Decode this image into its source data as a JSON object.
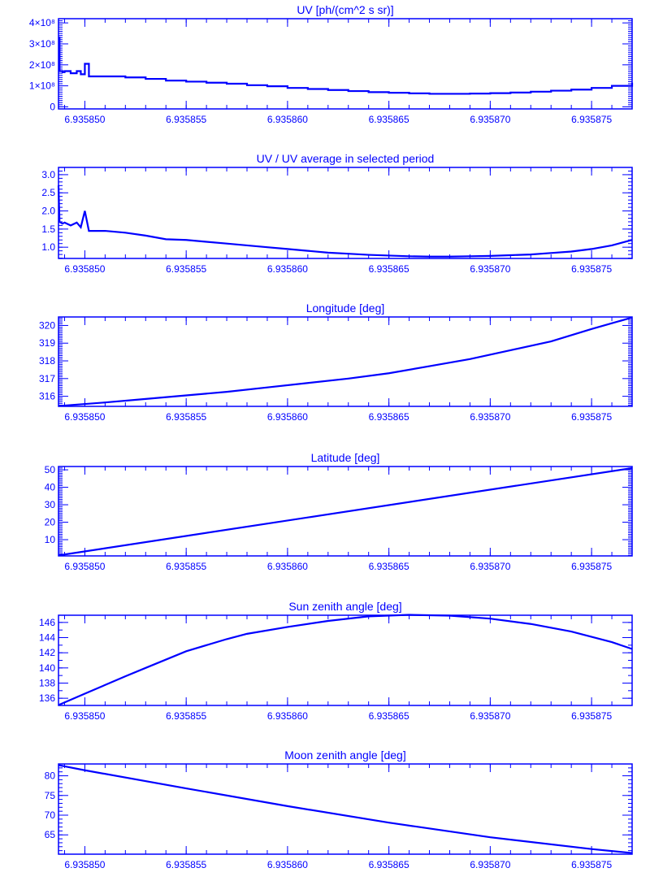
{
  "colors": {
    "line": "#0000ff",
    "axes": "#0000ff",
    "background": "#ffffff"
  },
  "chart_data": [
    {
      "type": "line",
      "step": true,
      "title": "UV [ph/(cm^2 s sr)]",
      "xlim": [
        6.9358487,
        6.935877
      ],
      "ylim": [
        -10000000,
        420000000
      ],
      "xticks": [
        6.93585,
        6.935855,
        6.93586,
        6.935865,
        6.93587,
        6.935875
      ],
      "xtick_labels": [
        "6.935850",
        "6.935855",
        "6.935860",
        "6.935865",
        "6.935870",
        "6.935875"
      ],
      "x_minor_step": 1e-06,
      "yticks": [
        0,
        100000000,
        200000000,
        300000000,
        400000000
      ],
      "ytick_labels": [
        "0",
        "1×10⁸",
        "2×10⁸",
        "3×10⁸",
        "4×10⁸"
      ],
      "y_minor_step": 10000000,
      "x": [
        6.9358487,
        6.93584875,
        6.9358489,
        6.935849,
        6.9358493,
        6.9358496,
        6.9358498,
        6.93585,
        6.9358502,
        6.935851,
        6.935852,
        6.935853,
        6.935854,
        6.935855,
        6.935856,
        6.935857,
        6.935858,
        6.935859,
        6.93586,
        6.935861,
        6.935862,
        6.935863,
        6.935864,
        6.935865,
        6.935866,
        6.935867,
        6.935868,
        6.935869,
        6.93587,
        6.935871,
        6.935872,
        6.935873,
        6.935874,
        6.935875,
        6.935876,
        6.935877
      ],
      "y": [
        330000000,
        170000000,
        165000000,
        170000000,
        160000000,
        170000000,
        155000000,
        205000000,
        145000000,
        145000000,
        140000000,
        133000000,
        125000000,
        120000000,
        115000000,
        110000000,
        103000000,
        98000000,
        90000000,
        85000000,
        80000000,
        75000000,
        70000000,
        67000000,
        64000000,
        62000000,
        62000000,
        63000000,
        65000000,
        68000000,
        72000000,
        77000000,
        82000000,
        90000000,
        100000000,
        115000000
      ]
    },
    {
      "type": "line",
      "title": "UV / UV average in selected period",
      "xlim": [
        6.9358487,
        6.935877
      ],
      "ylim": [
        0.69,
        3.2
      ],
      "xticks": [
        6.93585,
        6.935855,
        6.93586,
        6.935865,
        6.93587,
        6.935875
      ],
      "xtick_labels": [
        "6.935850",
        "6.935855",
        "6.935860",
        "6.935865",
        "6.935870",
        "6.935875"
      ],
      "x_minor_step": 1e-06,
      "yticks": [
        1.0,
        1.5,
        2.0,
        2.5,
        3.0
      ],
      "ytick_labels": [
        "1.0",
        "1.5",
        "2.0",
        "2.5",
        "3.0"
      ],
      "y_minor_step": 0.1,
      "x": [
        6.9358487,
        6.93584875,
        6.9358489,
        6.935849,
        6.9358493,
        6.9358496,
        6.9358498,
        6.93585,
        6.9358502,
        6.935851,
        6.935852,
        6.935853,
        6.935854,
        6.935855,
        6.935856,
        6.935857,
        6.935858,
        6.935859,
        6.93586,
        6.935861,
        6.935862,
        6.935863,
        6.935864,
        6.935865,
        6.935866,
        6.935867,
        6.935868,
        6.935869,
        6.93587,
        6.935871,
        6.935872,
        6.935873,
        6.935874,
        6.935875,
        6.935876,
        6.935877
      ],
      "y": [
        2.7,
        1.7,
        1.65,
        1.68,
        1.6,
        1.68,
        1.55,
        2.0,
        1.45,
        1.45,
        1.4,
        1.32,
        1.22,
        1.2,
        1.15,
        1.1,
        1.05,
        1.0,
        0.95,
        0.9,
        0.85,
        0.82,
        0.79,
        0.77,
        0.75,
        0.74,
        0.74,
        0.75,
        0.76,
        0.78,
        0.8,
        0.84,
        0.88,
        0.95,
        1.05,
        1.2
      ]
    },
    {
      "type": "line",
      "title": "Longitude [deg]",
      "xlim": [
        6.9358487,
        6.935877
      ],
      "ylim": [
        315.43,
        320.48
      ],
      "xticks": [
        6.93585,
        6.935855,
        6.93586,
        6.935865,
        6.93587,
        6.935875
      ],
      "xtick_labels": [
        "6.935850",
        "6.935855",
        "6.935860",
        "6.935865",
        "6.935870",
        "6.935875"
      ],
      "x_minor_step": 1e-06,
      "yticks": [
        316,
        317,
        318,
        319,
        320
      ],
      "ytick_labels": [
        "316",
        "317",
        "318",
        "319",
        "320"
      ],
      "y_minor_step": 0.1,
      "x": [
        6.9358487,
        6.935851,
        6.935853,
        6.935855,
        6.935857,
        6.935859,
        6.935861,
        6.935863,
        6.935865,
        6.935867,
        6.935869,
        6.935871,
        6.935873,
        6.935875,
        6.935877
      ],
      "y": [
        315.45,
        315.65,
        315.85,
        316.05,
        316.25,
        316.5,
        316.75,
        317.0,
        317.3,
        317.7,
        318.1,
        318.6,
        319.1,
        319.8,
        320.45
      ]
    },
    {
      "type": "line",
      "title": "Latitude [deg]",
      "xlim": [
        6.9358487,
        6.935877
      ],
      "ylim": [
        0.7,
        51.9
      ],
      "xticks": [
        6.93585,
        6.935855,
        6.93586,
        6.935865,
        6.93587,
        6.935875
      ],
      "xtick_labels": [
        "6.935850",
        "6.935855",
        "6.935860",
        "6.935865",
        "6.935870",
        "6.935875"
      ],
      "x_minor_step": 1e-06,
      "yticks": [
        10,
        20,
        30,
        40,
        50
      ],
      "ytick_labels": [
        "10",
        "20",
        "30",
        "40",
        "50"
      ],
      "y_minor_step": 1,
      "x": [
        6.9358487,
        6.935877
      ],
      "y": [
        1.0,
        51.0
      ]
    },
    {
      "type": "line",
      "title": "Sun zenith angle [deg]",
      "xlim": [
        6.9358487,
        6.935877
      ],
      "ylim": [
        135.05,
        146.95
      ],
      "xticks": [
        6.93585,
        6.935855,
        6.93586,
        6.935865,
        6.93587,
        6.935875
      ],
      "xtick_labels": [
        "6.935850",
        "6.935855",
        "6.935860",
        "6.935865",
        "6.935870",
        "6.935875"
      ],
      "x_minor_step": 1e-06,
      "yticks": [
        136,
        138,
        140,
        142,
        144,
        146
      ],
      "ytick_labels": [
        "136",
        "138",
        "140",
        "142",
        "144",
        "146"
      ],
      "y_minor_step": 1,
      "x": [
        6.9358487,
        6.93585,
        6.935852,
        6.935853,
        6.935855,
        6.935857,
        6.935858,
        6.93586,
        6.935862,
        6.935864,
        6.935866,
        6.935868,
        6.93587,
        6.935872,
        6.935874,
        6.935876,
        6.935877
      ],
      "y": [
        135.1,
        136.6,
        138.9,
        140.0,
        142.2,
        143.8,
        144.5,
        145.4,
        146.2,
        146.8,
        147.0,
        146.9,
        146.5,
        145.8,
        144.8,
        143.4,
        142.5
      ]
    },
    {
      "type": "line",
      "title": "Moon zenith angle [deg]",
      "xlim": [
        6.9358487,
        6.935877
      ],
      "ylim": [
        60.1,
        83.0
      ],
      "xticks": [
        6.93585,
        6.935855,
        6.93586,
        6.935865,
        6.93587,
        6.935875
      ],
      "xtick_labels": [
        "6.935850",
        "6.935855",
        "6.935860",
        "6.935865",
        "6.935870",
        "6.935875"
      ],
      "x_minor_step": 1e-06,
      "yticks": [
        65,
        70,
        75,
        80
      ],
      "ytick_labels": [
        "65",
        "70",
        "75",
        "80"
      ],
      "y_minor_step": 1,
      "x": [
        6.9358487,
        6.93585,
        6.935855,
        6.93586,
        6.935865,
        6.93587,
        6.935875,
        6.935877
      ],
      "y": [
        82.7,
        81.4,
        76.8,
        72.3,
        68.1,
        64.4,
        61.4,
        60.4
      ]
    }
  ]
}
